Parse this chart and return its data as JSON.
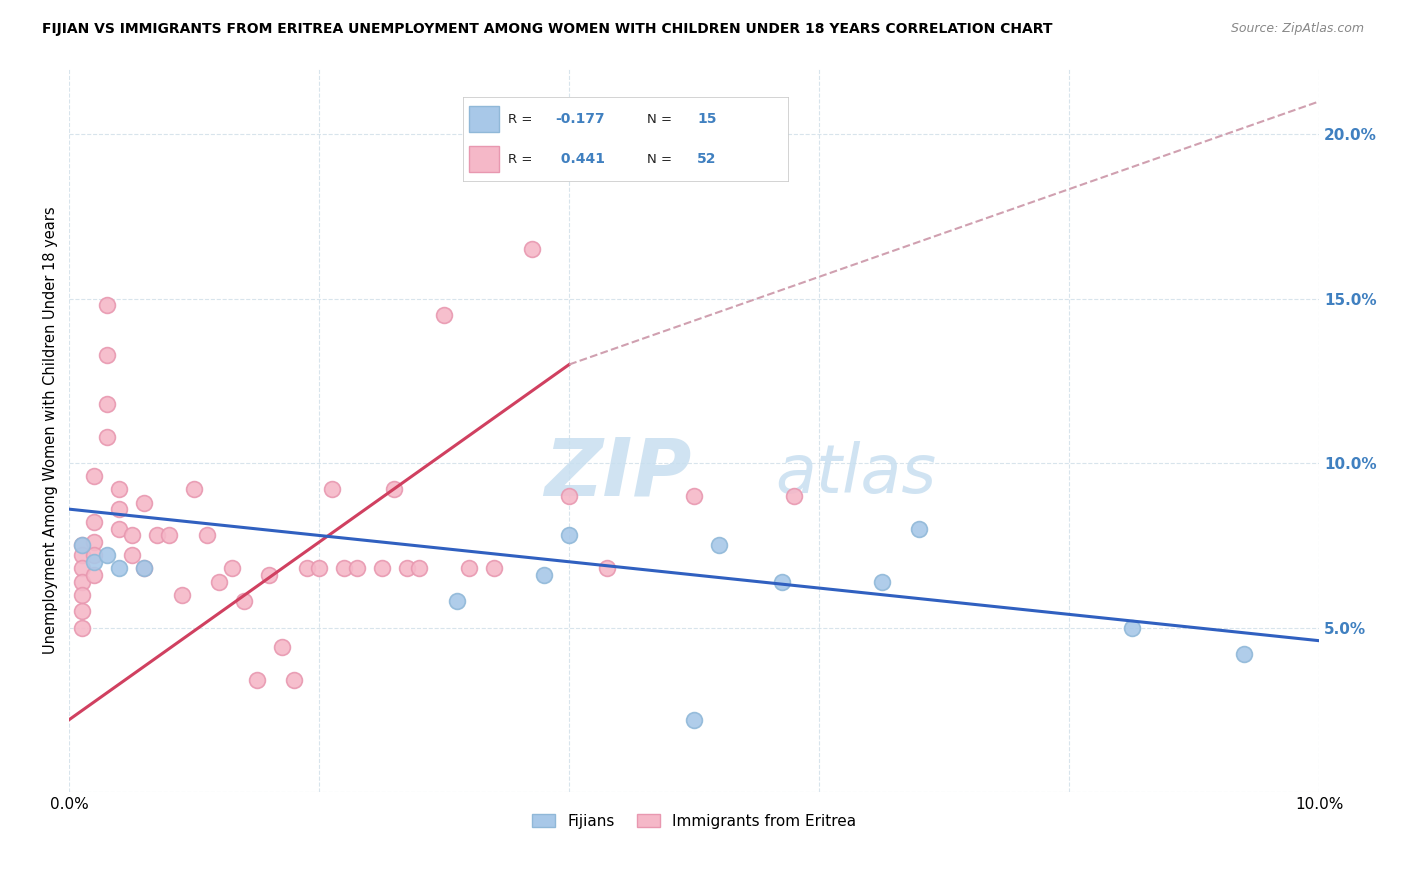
{
  "title": "FIJIAN VS IMMIGRANTS FROM ERITREA UNEMPLOYMENT AMONG WOMEN WITH CHILDREN UNDER 18 YEARS CORRELATION CHART",
  "source": "Source: ZipAtlas.com",
  "ylabel": "Unemployment Among Women with Children Under 18 years",
  "xlim": [
    0.0,
    0.1
  ],
  "ylim": [
    0.0,
    0.22
  ],
  "fijian_color": "#a8c8e8",
  "fijian_edge_color": "#90b8d8",
  "eritrea_color": "#f5b8c8",
  "eritrea_edge_color": "#e898b0",
  "fijian_R": -0.177,
  "fijian_N": 15,
  "eritrea_R": 0.441,
  "eritrea_N": 52,
  "trend_fijian_color": "#3060c0",
  "trend_eritrea_solid_color": "#d04060",
  "trend_eritrea_dashed_color": "#d0a0b0",
  "watermark_zip_color": "#c8dff0",
  "watermark_atlas_color": "#c8dff0",
  "background_color": "#ffffff",
  "grid_color": "#d8e4ec",
  "right_axis_color": "#4080c0",
  "fijians_x": [
    0.001,
    0.002,
    0.003,
    0.004,
    0.006,
    0.031,
    0.038,
    0.04,
    0.05,
    0.052,
    0.057,
    0.065,
    0.068,
    0.085,
    0.094
  ],
  "fijians_y": [
    0.075,
    0.07,
    0.072,
    0.068,
    0.068,
    0.058,
    0.066,
    0.078,
    0.022,
    0.075,
    0.064,
    0.064,
    0.08,
    0.05,
    0.042
  ],
  "eritrea_x": [
    0.001,
    0.001,
    0.001,
    0.001,
    0.001,
    0.001,
    0.001,
    0.002,
    0.002,
    0.002,
    0.002,
    0.002,
    0.003,
    0.003,
    0.003,
    0.003,
    0.004,
    0.004,
    0.004,
    0.005,
    0.005,
    0.006,
    0.006,
    0.007,
    0.008,
    0.009,
    0.01,
    0.011,
    0.012,
    0.013,
    0.014,
    0.015,
    0.016,
    0.017,
    0.018,
    0.019,
    0.02,
    0.021,
    0.022,
    0.023,
    0.025,
    0.026,
    0.027,
    0.028,
    0.03,
    0.032,
    0.034,
    0.037,
    0.04,
    0.043,
    0.05,
    0.058
  ],
  "eritrea_y": [
    0.075,
    0.072,
    0.068,
    0.064,
    0.06,
    0.055,
    0.05,
    0.096,
    0.082,
    0.076,
    0.072,
    0.066,
    0.148,
    0.133,
    0.118,
    0.108,
    0.092,
    0.086,
    0.08,
    0.078,
    0.072,
    0.088,
    0.068,
    0.078,
    0.078,
    0.06,
    0.092,
    0.078,
    0.064,
    0.068,
    0.058,
    0.034,
    0.066,
    0.044,
    0.034,
    0.068,
    0.068,
    0.092,
    0.068,
    0.068,
    0.068,
    0.092,
    0.068,
    0.068,
    0.145,
    0.068,
    0.068,
    0.165,
    0.09,
    0.068,
    0.09,
    0.09
  ],
  "trend_fijian_x0": 0.0,
  "trend_fijian_y0": 0.086,
  "trend_fijian_x1": 0.1,
  "trend_fijian_y1": 0.046,
  "trend_eritrea_x0": 0.0,
  "trend_eritrea_y0": 0.022,
  "trend_eritrea_x1": 0.04,
  "trend_eritrea_y1": 0.13,
  "trend_eritrea_dash_x0": 0.04,
  "trend_eritrea_dash_y0": 0.13,
  "trend_eritrea_dash_x1": 0.1,
  "trend_eritrea_dash_y1": 0.21
}
